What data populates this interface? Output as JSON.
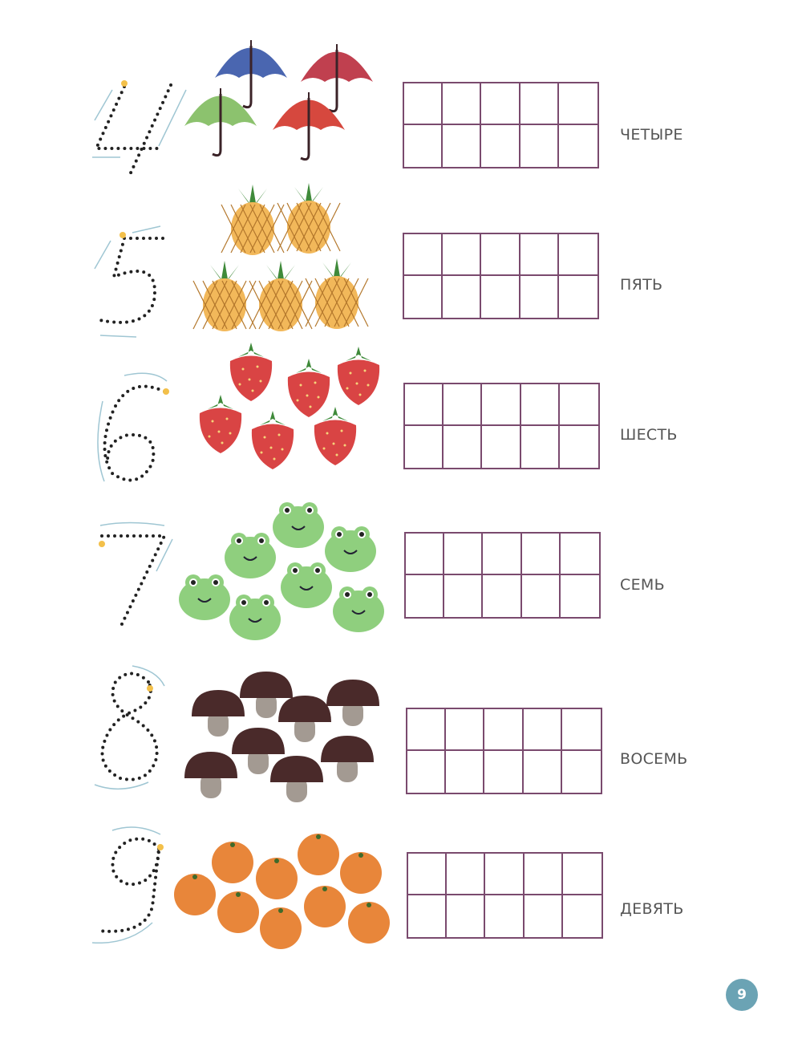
{
  "rows": [
    {
      "digit": "4",
      "word": "ЧЕТЫРЕ",
      "item": "umbrella-icon",
      "count": 4
    },
    {
      "digit": "5",
      "word": "ПЯТЬ",
      "item": "pineapple-icon",
      "count": 5
    },
    {
      "digit": "6",
      "word": "ШЕСТЬ",
      "item": "strawberry-icon",
      "count": 6
    },
    {
      "digit": "7",
      "word": "СЕМЬ",
      "item": "frog-icon",
      "count": 7
    },
    {
      "digit": "8",
      "word": "ВОСЕМЬ",
      "item": "mushroom-icon",
      "count": 8
    },
    {
      "digit": "9",
      "word": "ДЕВЯТЬ",
      "item": "orange-icon",
      "count": 9
    }
  ],
  "ten_frame": {
    "columns": 5,
    "rows": 2
  },
  "page_number": "9",
  "colors": {
    "grid": "#7a4a6e",
    "page_badge": "#6ba3b4",
    "trace_dots": "#222222",
    "start_dot": "#f3c04a",
    "arrows": "#9fc6d3",
    "umbrellas": [
      "#4a66b0",
      "#c0404f",
      "#8cc26e",
      "#d6483e"
    ],
    "pineapple": "#f2b85a",
    "strawberry": "#d94444",
    "frog": "#8fcf7e",
    "mushroom_cap": "#4a2a2a",
    "mushroom_stem": "#a39a92",
    "orange": "#e8863a"
  }
}
